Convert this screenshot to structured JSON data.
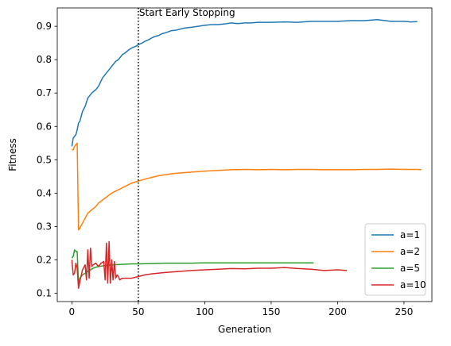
{
  "chart_data": {
    "type": "line",
    "title": "",
    "xlabel": "Generation",
    "ylabel": "Fitness",
    "xlim": [
      -11,
      271
    ],
    "ylim": [
      0.075,
      0.955
    ],
    "xticks": [
      0,
      50,
      100,
      150,
      200,
      250
    ],
    "yticks": [
      0.1,
      0.2,
      0.3,
      0.4,
      0.5,
      0.6,
      0.7,
      0.8,
      0.9
    ],
    "grid": false,
    "legend_position": "lower right",
    "annotation": {
      "text": "Start Early Stopping",
      "x": 50,
      "line_style": "dotted",
      "color": "#000000"
    },
    "series": [
      {
        "name": "a=1",
        "color": "#1f77b4",
        "x": [
          0,
          1,
          2,
          3,
          4,
          5,
          6,
          8,
          10,
          12,
          15,
          18,
          20,
          23,
          25,
          28,
          30,
          33,
          35,
          38,
          40,
          43,
          45,
          48,
          50,
          53,
          55,
          58,
          60,
          63,
          65,
          68,
          70,
          73,
          75,
          78,
          80,
          85,
          90,
          95,
          100,
          105,
          110,
          115,
          120,
          125,
          130,
          135,
          140,
          150,
          160,
          170,
          180,
          190,
          200,
          210,
          220,
          230,
          240,
          250,
          255,
          260
        ],
        "y": [
          0.54,
          0.565,
          0.57,
          0.575,
          0.59,
          0.61,
          0.615,
          0.645,
          0.66,
          0.685,
          0.7,
          0.71,
          0.72,
          0.745,
          0.755,
          0.77,
          0.78,
          0.795,
          0.8,
          0.815,
          0.82,
          0.83,
          0.835,
          0.84,
          0.845,
          0.85,
          0.855,
          0.86,
          0.865,
          0.87,
          0.872,
          0.878,
          0.88,
          0.884,
          0.887,
          0.888,
          0.89,
          0.895,
          0.897,
          0.9,
          0.903,
          0.905,
          0.905,
          0.907,
          0.91,
          0.908,
          0.91,
          0.91,
          0.912,
          0.912,
          0.913,
          0.912,
          0.915,
          0.915,
          0.915,
          0.917,
          0.917,
          0.92,
          0.915,
          0.915,
          0.913,
          0.914
        ]
      },
      {
        "name": "a=2",
        "color": "#ff7f0e",
        "x": [
          0,
          1,
          2,
          3,
          4,
          5,
          6,
          8,
          10,
          12,
          15,
          18,
          20,
          25,
          30,
          35,
          40,
          45,
          50,
          55,
          60,
          65,
          70,
          75,
          80,
          90,
          100,
          110,
          120,
          130,
          140,
          150,
          160,
          170,
          180,
          190,
          200,
          210,
          220,
          230,
          240,
          250,
          260,
          263
        ],
        "y": [
          0.53,
          0.53,
          0.54,
          0.545,
          0.55,
          0.29,
          0.295,
          0.31,
          0.325,
          0.34,
          0.35,
          0.36,
          0.37,
          0.385,
          0.4,
          0.41,
          0.42,
          0.43,
          0.436,
          0.442,
          0.447,
          0.452,
          0.455,
          0.458,
          0.46,
          0.463,
          0.466,
          0.468,
          0.47,
          0.471,
          0.47,
          0.471,
          0.47,
          0.471,
          0.471,
          0.47,
          0.47,
          0.47,
          0.471,
          0.471,
          0.472,
          0.471,
          0.471,
          0.47
        ]
      },
      {
        "name": "a=5",
        "color": "#2ca02c",
        "x": [
          0,
          1,
          2,
          3,
          4,
          5,
          6,
          7,
          8,
          10,
          12,
          14,
          16,
          18,
          20,
          25,
          30,
          35,
          40,
          45,
          50,
          60,
          70,
          80,
          90,
          100,
          120,
          140,
          160,
          180,
          182
        ],
        "y": [
          0.205,
          0.21,
          0.23,
          0.225,
          0.225,
          0.125,
          0.145,
          0.15,
          0.155,
          0.16,
          0.165,
          0.17,
          0.175,
          0.178,
          0.18,
          0.183,
          0.185,
          0.186,
          0.187,
          0.188,
          0.188,
          0.189,
          0.19,
          0.19,
          0.19,
          0.191,
          0.191,
          0.191,
          0.191,
          0.191,
          0.191
        ]
      },
      {
        "name": "a=10",
        "color": "#d62728",
        "x": [
          0,
          1,
          2,
          3,
          4,
          5,
          6,
          8,
          10,
          11,
          12,
          13,
          14,
          15,
          16,
          18,
          20,
          22,
          24,
          25,
          26,
          27,
          28,
          29,
          30,
          31,
          32,
          33,
          34,
          35,
          36,
          38,
          40,
          45,
          50,
          55,
          60,
          70,
          80,
          90,
          100,
          110,
          120,
          130,
          140,
          150,
          160,
          170,
          180,
          190,
          200,
          207
        ],
        "y": [
          0.2,
          0.155,
          0.16,
          0.19,
          0.175,
          0.115,
          0.135,
          0.17,
          0.185,
          0.14,
          0.23,
          0.145,
          0.235,
          0.18,
          0.185,
          0.19,
          0.18,
          0.19,
          0.195,
          0.14,
          0.25,
          0.13,
          0.255,
          0.13,
          0.2,
          0.14,
          0.195,
          0.145,
          0.155,
          0.15,
          0.14,
          0.145,
          0.145,
          0.145,
          0.15,
          0.155,
          0.158,
          0.162,
          0.165,
          0.168,
          0.17,
          0.172,
          0.174,
          0.173,
          0.175,
          0.175,
          0.177,
          0.174,
          0.172,
          0.168,
          0.17,
          0.168
        ]
      }
    ]
  }
}
